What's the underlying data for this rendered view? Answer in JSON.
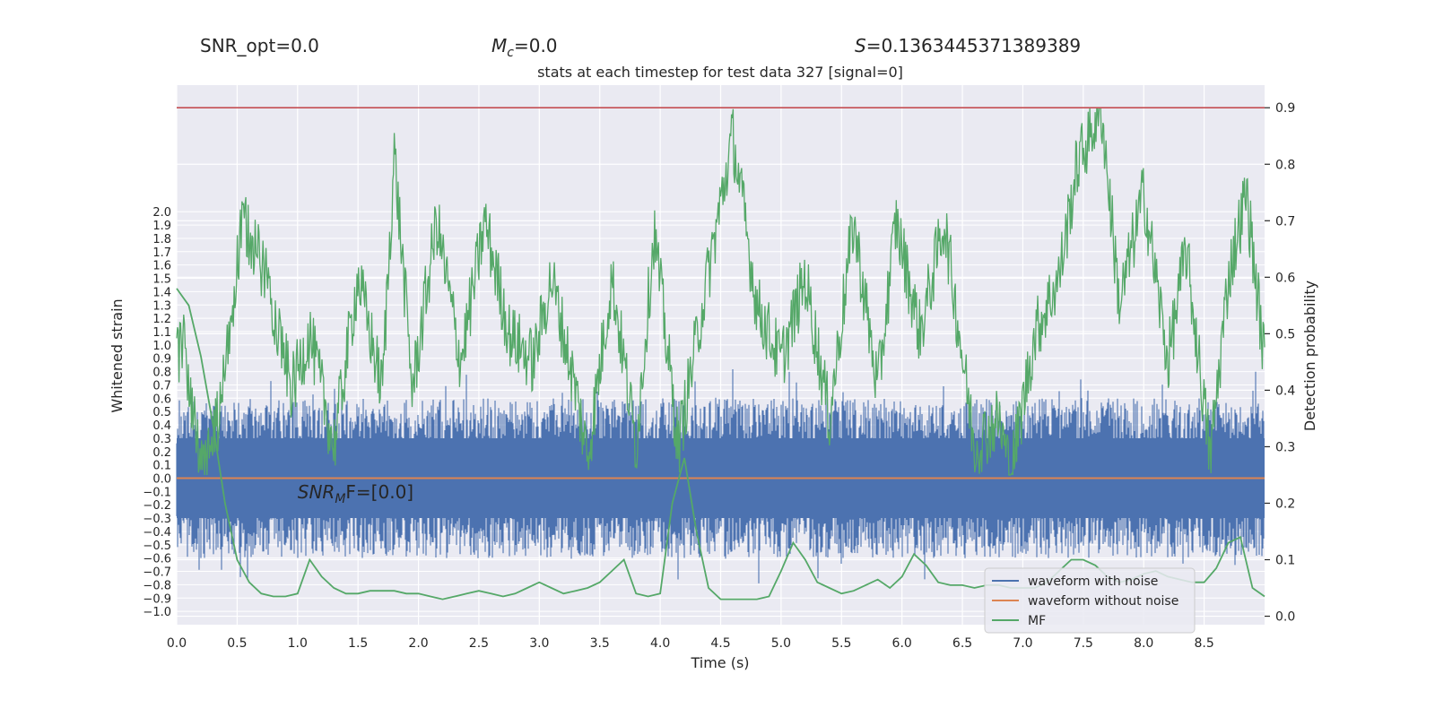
{
  "header": {
    "snr_opt": "SNR_opt=0.0",
    "mc": "=0.0",
    "mc_symbol": "M",
    "mc_sub": "c",
    "s_value": "=0.1363445371389389",
    "s_symbol": "S"
  },
  "chart_data": {
    "type": "line",
    "title": "stats at each timestep for test data 327 [signal=0]",
    "xlabel": "Time (s)",
    "ylabel": "Whitened strain",
    "y2label": "Detection probability",
    "xlim": [
      0.0,
      9.0
    ],
    "ylim": [
      -1.1,
      2.95
    ],
    "y2lim": [
      -0.015,
      0.94
    ],
    "xticks": [
      "0.0",
      "0.5",
      "1.0",
      "1.5",
      "2.0",
      "2.5",
      "3.0",
      "3.5",
      "4.0",
      "4.5",
      "5.0",
      "5.5",
      "6.0",
      "6.5",
      "7.0",
      "7.5",
      "8.0",
      "8.5"
    ],
    "yticks": [
      "-1.0",
      "-0.9",
      "-0.8",
      "-0.7",
      "-0.6",
      "-0.5",
      "-0.4",
      "-0.3",
      "-0.2",
      "-0.1",
      "0.0",
      "0.1",
      "0.2",
      "0.3",
      "0.4",
      "0.5",
      "0.6",
      "0.7",
      "0.8",
      "0.9",
      "1.0",
      "1.1",
      "1.2",
      "1.3",
      "1.4",
      "1.5",
      "1.6",
      "1.7",
      "1.8",
      "1.9",
      "2.0"
    ],
    "y2ticks": [
      "0.0",
      "0.1",
      "0.2",
      "0.3",
      "0.4",
      "0.5",
      "0.6",
      "0.7",
      "0.8",
      "0.9"
    ],
    "threshold": 0.9,
    "annotation": {
      "prefix": "SNR",
      "sub": "M",
      "suffix": "F=[0.0]",
      "x": 1.0,
      "y": -0.15
    },
    "legend_position": "lower right",
    "series": [
      {
        "name": "waveform with noise",
        "color": "#4c72b0",
        "envelope": [
          -0.6,
          0.6
        ]
      },
      {
        "name": "waveform without noise",
        "color": "#dd8452",
        "value": 0.0
      },
      {
        "name": "MF",
        "color": "#55a868",
        "x": [
          0.0,
          0.1,
          0.2,
          0.3,
          0.4,
          0.5,
          0.6,
          0.7,
          0.8,
          0.9,
          1.0,
          1.1,
          1.2,
          1.3,
          1.4,
          1.5,
          1.6,
          1.7,
          1.8,
          1.9,
          2.0,
          2.1,
          2.2,
          2.3,
          2.4,
          2.5,
          2.6,
          2.7,
          2.8,
          2.9,
          3.0,
          3.1,
          3.2,
          3.3,
          3.4,
          3.5,
          3.6,
          3.7,
          3.8,
          3.9,
          4.0,
          4.1,
          4.2,
          4.3,
          4.4,
          4.5,
          4.6,
          4.7,
          4.8,
          4.9,
          5.0,
          5.1,
          5.2,
          5.3,
          5.4,
          5.5,
          5.6,
          5.7,
          5.8,
          5.9,
          6.0,
          6.1,
          6.2,
          6.3,
          6.4,
          6.5,
          6.6,
          6.7,
          6.8,
          6.9,
          7.0,
          7.1,
          7.2,
          7.3,
          7.4,
          7.5,
          7.6,
          7.7,
          7.8,
          7.9,
          8.0,
          8.1,
          8.2,
          8.3,
          8.4,
          8.5,
          8.6,
          8.7,
          8.8,
          8.9,
          9.0
        ],
        "y": [
          0.58,
          0.55,
          0.46,
          0.34,
          0.2,
          0.1,
          0.06,
          0.04,
          0.035,
          0.035,
          0.04,
          0.1,
          0.07,
          0.05,
          0.04,
          0.04,
          0.045,
          0.045,
          0.045,
          0.04,
          0.04,
          0.035,
          0.03,
          0.035,
          0.04,
          0.045,
          0.04,
          0.035,
          0.04,
          0.05,
          0.06,
          0.05,
          0.04,
          0.045,
          0.05,
          0.06,
          0.08,
          0.1,
          0.04,
          0.035,
          0.04,
          0.2,
          0.28,
          0.15,
          0.05,
          0.03,
          0.03,
          0.03,
          0.03,
          0.035,
          0.08,
          0.13,
          0.1,
          0.06,
          0.05,
          0.04,
          0.045,
          0.055,
          0.065,
          0.05,
          0.07,
          0.11,
          0.09,
          0.06,
          0.055,
          0.055,
          0.05,
          0.055,
          0.055,
          0.05,
          0.05,
          0.05,
          0.06,
          0.08,
          0.1,
          0.1,
          0.09,
          0.07,
          0.06,
          0.065,
          0.075,
          0.08,
          0.07,
          0.065,
          0.06,
          0.06,
          0.085,
          0.13,
          0.14,
          0.05,
          0.035
        ]
      }
    ]
  }
}
